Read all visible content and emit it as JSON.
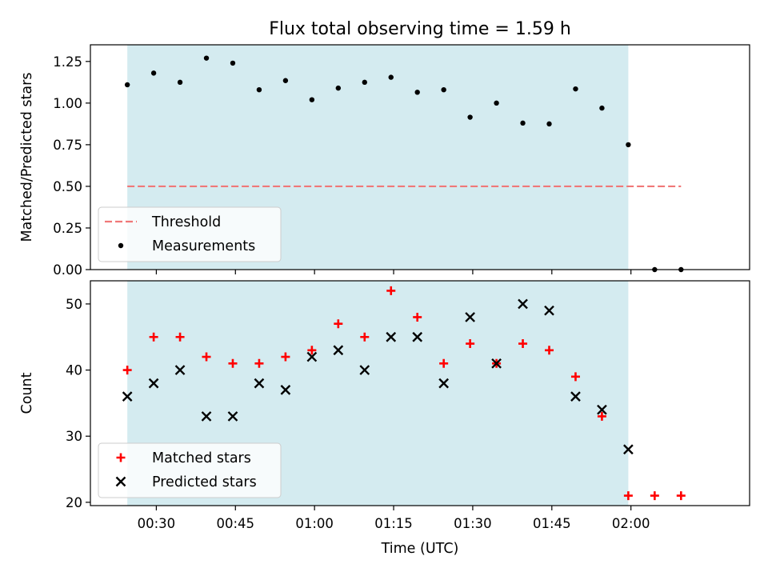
{
  "title": "Flux total observing time = 1.59 h",
  "colors": {
    "observing_band": "#d4ebf0",
    "threshold": "#f07878",
    "measurement": "#000000",
    "matched": "#ff0000",
    "predicted": "#000000"
  },
  "chart_data": [
    {
      "type": "scatter",
      "xlabel": "",
      "ylabel": "Matched/Predicted stars",
      "x_unit": "minutes after 00:00 UTC",
      "xlim": [
        17.5,
        142.5
      ],
      "ylim": [
        0,
        1.35
      ],
      "yticks": [
        0.0,
        0.25,
        0.5,
        0.75,
        1.0,
        1.25
      ],
      "ytick_labels": [
        "0.00",
        "0.25",
        "0.50",
        "0.75",
        "1.00",
        "1.25"
      ],
      "xticks": [
        30,
        45,
        60,
        75,
        90,
        105,
        120
      ],
      "observing_band": [
        24.5,
        119.5
      ],
      "threshold": {
        "value": 0.5,
        "x_range": [
          24.5,
          129.5
        ]
      },
      "legend": {
        "position": "lower-left",
        "labels": [
          "Threshold",
          "Measurements"
        ]
      },
      "series": [
        {
          "name": "Measurements",
          "marker": "dot",
          "x": [
            24.5,
            29.5,
            34.5,
            39.5,
            44.5,
            49.5,
            54.5,
            59.5,
            64.5,
            69.5,
            74.5,
            79.5,
            84.5,
            89.5,
            94.5,
            99.5,
            104.5,
            109.5,
            114.5,
            119.5,
            124.5,
            129.5
          ],
          "y": [
            1.11,
            1.18,
            1.125,
            1.27,
            1.24,
            1.08,
            1.135,
            1.02,
            1.09,
            1.125,
            1.155,
            1.065,
            1.08,
            0.915,
            1.0,
            0.88,
            0.875,
            1.085,
            0.97,
            0.75,
            0.0,
            0.0
          ]
        }
      ]
    },
    {
      "type": "scatter",
      "xlabel": "Time (UTC)",
      "ylabel": "Count",
      "x_unit": "minutes after 00:00 UTC",
      "xlim": [
        17.5,
        142.5
      ],
      "ylim": [
        19.5,
        53.5
      ],
      "yticks": [
        20,
        30,
        40,
        50
      ],
      "ytick_labels": [
        "20",
        "30",
        "40",
        "50"
      ],
      "xticks": [
        30,
        45,
        60,
        75,
        90,
        105,
        120
      ],
      "xtick_labels": [
        "00:30",
        "00:45",
        "01:00",
        "01:15",
        "01:30",
        "01:45",
        "02:00"
      ],
      "observing_band": [
        24.5,
        119.5
      ],
      "legend": {
        "position": "lower-left",
        "labels": [
          "Matched stars",
          "Predicted stars"
        ]
      },
      "series": [
        {
          "name": "Matched stars",
          "marker": "plus",
          "x": [
            24.5,
            29.5,
            34.5,
            39.5,
            44.5,
            49.5,
            54.5,
            59.5,
            64.5,
            69.5,
            74.5,
            79.5,
            84.5,
            89.5,
            94.5,
            99.5,
            104.5,
            109.5,
            114.5,
            119.5,
            124.5,
            129.5
          ],
          "y": [
            40,
            45,
            45,
            42,
            41,
            41,
            42,
            43,
            47,
            45,
            52,
            48,
            41,
            44,
            41,
            44,
            43,
            39,
            33,
            21,
            21,
            21
          ]
        },
        {
          "name": "Predicted stars",
          "marker": "x",
          "x": [
            24.5,
            29.5,
            34.5,
            39.5,
            44.5,
            49.5,
            54.5,
            59.5,
            64.5,
            69.5,
            74.5,
            79.5,
            84.5,
            89.5,
            94.5,
            99.5,
            104.5,
            109.5,
            114.5,
            119.5
          ],
          "y": [
            36,
            38,
            40,
            33,
            33,
            38,
            37,
            42,
            43,
            40,
            45,
            45,
            38,
            48,
            41,
            50,
            49,
            36,
            34,
            28
          ]
        }
      ]
    }
  ]
}
